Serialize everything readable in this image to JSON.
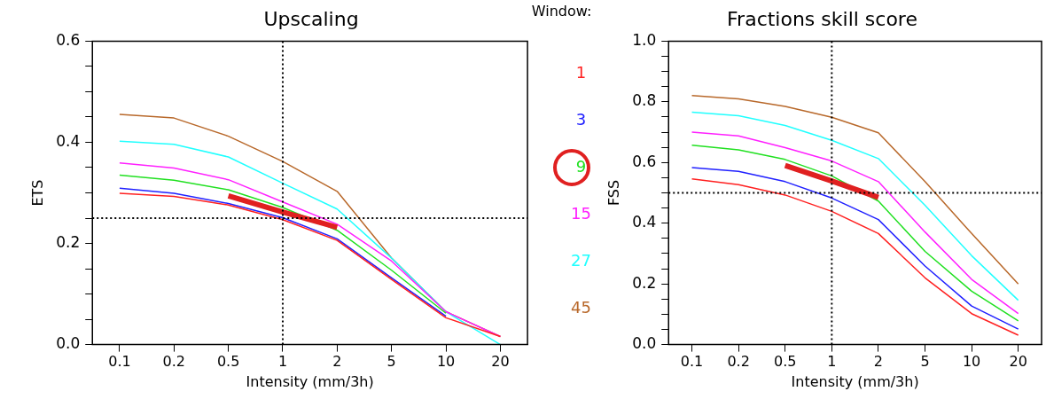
{
  "chart_data": [
    {
      "type": "line",
      "title": "Upscaling",
      "xlabel": "Intensity (mm/3h)",
      "ylabel": "ETS",
      "legend_title": "Window:",
      "legend": "right",
      "marker": "none",
      "grid": false,
      "categories": [
        "0.1",
        "0.2",
        "0.5",
        "1",
        "2",
        "5",
        "10",
        "20"
      ],
      "ylim": [
        0,
        0.6
      ],
      "yticks": [
        {
          "value": 0,
          "label": "0.0"
        },
        {
          "value": 0.05,
          "label": null
        },
        {
          "value": 0.1,
          "label": null
        },
        {
          "value": 0.15,
          "label": null
        },
        {
          "value": 0.2,
          "label": "0.2"
        },
        {
          "value": 0.25,
          "label": null
        },
        {
          "value": 0.3,
          "label": null
        },
        {
          "value": 0.35,
          "label": null
        },
        {
          "value": 0.4,
          "label": "0.4"
        },
        {
          "value": 0.45,
          "label": null
        },
        {
          "value": 0.5,
          "label": null
        },
        {
          "value": 0.55,
          "label": null
        },
        {
          "value": 0.6,
          "label": "0.6"
        }
      ],
      "ref_lines": [
        {
          "axis": "x",
          "value": "1",
          "color": "#000000",
          "line_style": "dotted"
        },
        {
          "axis": "y",
          "value": 0.25,
          "color": "#000000",
          "line_style": "dotted"
        }
      ],
      "series": [
        {
          "name": "1",
          "color": "#ff2020",
          "values": [
            0.299,
            0.293,
            0.276,
            0.247,
            0.206,
            0.129,
            0.053,
            0.016
          ]
        },
        {
          "name": "3",
          "color": "#2020ff",
          "values": [
            0.309,
            0.299,
            0.279,
            0.251,
            0.209,
            0.132,
            0.056,
            null
          ]
        },
        {
          "name": "9",
          "color": "#20e020",
          "values": [
            0.335,
            0.325,
            0.306,
            0.271,
            0.226,
            0.147,
            0.062,
            null
          ]
        },
        {
          "name": "15",
          "color": "#ff20ff",
          "values": [
            0.359,
            0.349,
            0.326,
            0.282,
            0.238,
            0.165,
            0.065,
            0.016
          ]
        },
        {
          "name": "27",
          "color": "#20ffff",
          "values": [
            0.402,
            0.396,
            0.371,
            0.319,
            0.268,
            0.171,
            0.065,
            0.0
          ]
        },
        {
          "name": "45",
          "color": "#b8682a",
          "values": [
            0.455,
            0.448,
            0.412,
            0.362,
            0.303,
            0.171,
            0.065,
            0.016
          ]
        },
        {
          "type": "line",
          "color": "#e02020",
          "values": [
            null,
            null,
            0.294,
            0.262,
            0.232,
            null,
            null,
            null
          ]
        }
      ]
    },
    {
      "type": "line",
      "title": "Fractions skill score",
      "xlabel": "Intensity (mm/3h)",
      "ylabel": "FSS",
      "legend": false,
      "marker": "none",
      "grid": false,
      "categories": [
        "0.1",
        "0.2",
        "0.5",
        "1",
        "2",
        "5",
        "10",
        "20"
      ],
      "ylim": [
        0,
        1.0
      ],
      "yticks": [
        {
          "value": 0,
          "label": "0.0"
        },
        {
          "value": 0.05,
          "label": null
        },
        {
          "value": 0.1,
          "label": null
        },
        {
          "value": 0.15,
          "label": null
        },
        {
          "value": 0.2,
          "label": "0.2"
        },
        {
          "value": 0.25,
          "label": null
        },
        {
          "value": 0.3,
          "label": null
        },
        {
          "value": 0.35,
          "label": null
        },
        {
          "value": 0.4,
          "label": "0.4"
        },
        {
          "value": 0.45,
          "label": null
        },
        {
          "value": 0.5,
          "label": null
        },
        {
          "value": 0.55,
          "label": null
        },
        {
          "value": 0.6,
          "label": "0.6"
        },
        {
          "value": 0.65,
          "label": null
        },
        {
          "value": 0.7,
          "label": null
        },
        {
          "value": 0.75,
          "label": null
        },
        {
          "value": 0.8,
          "label": "0.8"
        },
        {
          "value": 0.85,
          "label": null
        },
        {
          "value": 0.9,
          "label": null
        },
        {
          "value": 0.95,
          "label": null
        },
        {
          "value": 1.0,
          "label": "1.0"
        }
      ],
      "ref_lines": [
        {
          "axis": "x",
          "value": "1",
          "color": "#000000",
          "line_style": "dotted"
        },
        {
          "axis": "y",
          "value": 0.5,
          "color": "#000000",
          "line_style": "dotted"
        }
      ],
      "series": [
        {
          "color": "#ff2020",
          "values": [
            0.546,
            0.527,
            0.493,
            0.439,
            0.366,
            0.22,
            0.102,
            0.031
          ]
        },
        {
          "color": "#2020ff",
          "values": [
            0.583,
            0.571,
            0.537,
            0.483,
            0.412,
            0.259,
            0.127,
            0.051
          ]
        },
        {
          "color": "#20e020",
          "values": [
            0.657,
            0.642,
            0.61,
            0.556,
            0.473,
            0.307,
            0.176,
            0.078
          ]
        },
        {
          "color": "#ff20ff",
          "values": [
            0.7,
            0.688,
            0.649,
            0.605,
            0.537,
            0.371,
            0.215,
            0.102
          ]
        },
        {
          "color": "#20ffff",
          "values": [
            0.766,
            0.754,
            0.722,
            0.673,
            0.613,
            0.459,
            0.293,
            0.146
          ]
        },
        {
          "color": "#b8682a",
          "values": [
            0.821,
            0.81,
            0.785,
            0.749,
            0.698,
            0.537,
            0.366,
            0.2
          ]
        },
        {
          "type": "line",
          "color": "#e02020",
          "values": [
            null,
            null,
            0.59,
            0.539,
            0.485,
            null,
            null,
            null
          ]
        }
      ]
    }
  ]
}
